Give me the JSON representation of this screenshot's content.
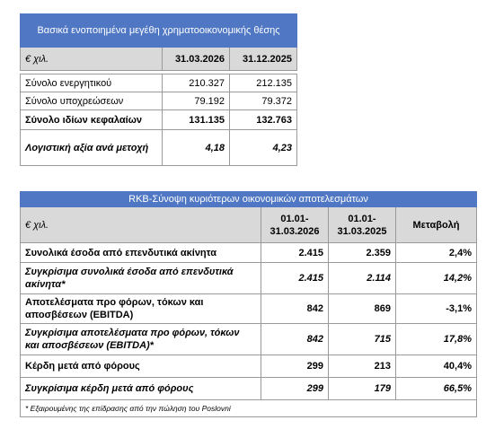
{
  "table1": {
    "title": "Βασικά ενοποιημένα μεγέθη χρηματοοικονομικής θέσης",
    "header": [
      "€ χιλ.",
      "31.03.2026",
      "31.12.2025"
    ],
    "rows": [
      [
        "Σύνολο ενεργητικού",
        "210.327",
        "212.135"
      ],
      [
        "Σύνολο υποχρεώσεων",
        "79.192",
        "79.372"
      ],
      [
        "Σύνολο ιδίων κεφαλαίων",
        "131.135",
        "132.763"
      ],
      [
        "Λογιστική αξία ανά μετοχή",
        "4,18",
        "4,23"
      ]
    ]
  },
  "table2": {
    "title": "RKB-Σύνοψη κυριότερων οικονομικών αποτελεσμάτων",
    "header": [
      "€ χιλ.",
      "01.01-31.03.2026",
      "01.01-31.03.2025",
      "Μεταβολή"
    ],
    "rows": [
      [
        "Συνολικά έσοδα από επενδυτικά ακίνητα",
        "2.415",
        "2.359",
        "2,4%"
      ],
      [
        "Συγκρίσιμα συνολικά έσοδα από επενδυτικά ακίνητα*",
        "2.415",
        "2.114",
        "14,2%"
      ],
      [
        "Αποτελέσματα προ φόρων, τόκων και αποσβέσεων (EBITDA)",
        "842",
        "869",
        "-3,1%"
      ],
      [
        "Συγκρίσιμα αποτελέσματα προ φόρων, τόκων και αποσβέσεων (EBITDA)*",
        "842",
        "715",
        "17,8%"
      ],
      [
        "Κέρδη μετά από φόρους",
        "299",
        "213",
        "40,4%"
      ],
      [
        "Συγκρίσιμα κέρδη μετά από φόρους",
        "299",
        "179",
        "66,5%"
      ]
    ],
    "footnote": "* Εξαιρουμένης της επίδρασης από την πώληση του Poslovni"
  }
}
